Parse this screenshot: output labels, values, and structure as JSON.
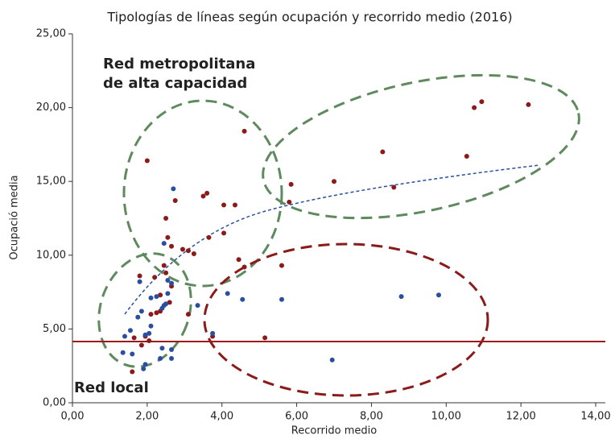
{
  "chart_data": {
    "type": "scatter",
    "title": "Tipologías de líneas según ocupación y recorrido medio (2016)",
    "xlabel": "Recorrido medio",
    "ylabel": "Ocupació media",
    "annotations": [
      "Red metropolitana",
      "de alta capacidad",
      "Red local"
    ],
    "xlim": [
      0,
      14
    ],
    "ylim": [
      0,
      25
    ],
    "xticks": [
      {
        "value": 0,
        "label": "0,00"
      },
      {
        "value": 2,
        "label": "2,00"
      },
      {
        "value": 4,
        "label": "4,00"
      },
      {
        "value": 6,
        "label": "6,00"
      },
      {
        "value": 8,
        "label": "8,00"
      },
      {
        "value": 10,
        "label": "10,00"
      },
      {
        "value": 12,
        "label": "12,00"
      },
      {
        "value": 14,
        "label": "14,00"
      }
    ],
    "yticks": [
      {
        "value": 0,
        "label": "0,00"
      },
      {
        "value": 5,
        "label": "5,00"
      },
      {
        "value": 10,
        "label": "10,00"
      },
      {
        "value": 15,
        "label": "15,00"
      },
      {
        "value": 20,
        "label": "20,00"
      },
      {
        "value": 25,
        "label": "25,00"
      }
    ],
    "hline": 4.15,
    "hline_color": "#9b1c1c",
    "series": [
      {
        "color": "#8b1a1a",
        "x": [
          2.0,
          4.6,
          12.2,
          10.75,
          10.95,
          8.3,
          10.55,
          7.0,
          8.6,
          5.85,
          5.8,
          3.5,
          3.6,
          4.05,
          4.35,
          2.75,
          2.5,
          4.05,
          3.65,
          2.55,
          2.65,
          2.95,
          3.1,
          3.25,
          4.45,
          4.6,
          5.6,
          2.45,
          1.8,
          2.2,
          2.5,
          2.65,
          2.35,
          2.25,
          2.35,
          2.1,
          3.1,
          2.6,
          1.65,
          1.85,
          1.95,
          2.05,
          5.15,
          1.6,
          3.75
        ],
        "values": [
          16.4,
          18.4,
          20.2,
          20.0,
          20.4,
          17.0,
          16.7,
          15.0,
          14.6,
          14.8,
          13.6,
          14.0,
          14.2,
          13.4,
          13.4,
          13.7,
          12.5,
          11.5,
          11.2,
          11.2,
          10.6,
          10.4,
          10.3,
          10.1,
          9.7,
          9.2,
          9.3,
          9.3,
          8.6,
          8.5,
          8.8,
          7.9,
          7.3,
          6.1,
          6.2,
          6.0,
          6.0,
          6.8,
          4.4,
          3.9,
          4.5,
          4.2,
          4.4,
          2.1,
          4.5
        ]
      },
      {
        "color": "#2a4fa0",
        "x": [
          2.7,
          2.45,
          2.55,
          2.65,
          1.8,
          2.1,
          2.25,
          2.55,
          2.45,
          2.5,
          2.4,
          1.85,
          1.75,
          2.1,
          1.95,
          1.55,
          1.4,
          3.35,
          4.15,
          4.55,
          5.6,
          8.8,
          9.8,
          3.75,
          2.05,
          1.35,
          1.6,
          2.4,
          2.65,
          2.35,
          2.65,
          1.95,
          1.9,
          6.95
        ],
        "values": [
          14.5,
          10.8,
          8.3,
          8.1,
          8.2,
          7.1,
          7.2,
          7.4,
          6.6,
          6.7,
          6.4,
          6.2,
          5.8,
          5.2,
          4.6,
          4.9,
          4.5,
          6.6,
          7.4,
          7.0,
          7.0,
          7.2,
          7.3,
          4.7,
          4.7,
          3.4,
          3.3,
          3.7,
          3.6,
          3.0,
          3.0,
          2.6,
          2.3,
          2.9
        ]
      }
    ]
  }
}
